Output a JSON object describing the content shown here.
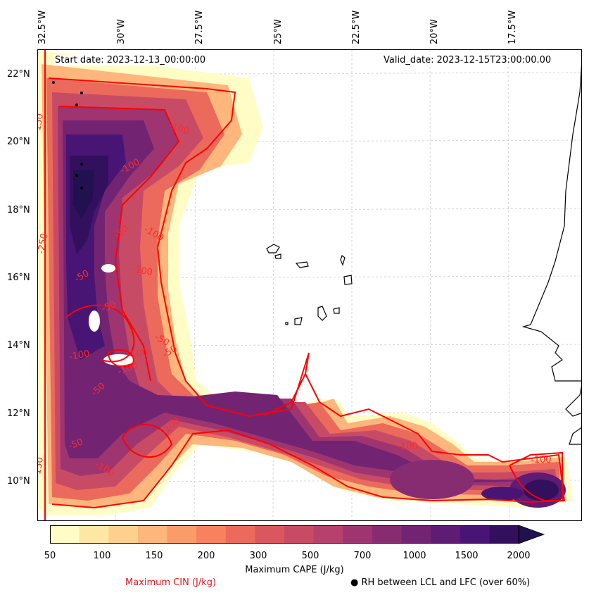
{
  "longitude_labels": [
    "32.5°W",
    "30°W",
    "27.5°W",
    "25°W",
    "22.5°W",
    "20°W",
    "17.5°W"
  ],
  "latitude_labels": [
    "22°N",
    "20°N",
    "18°N",
    "16°N",
    "14°N",
    "12°N",
    "10°N"
  ],
  "start_date": "Start date: 2023-12-13_00:00:00",
  "valid_date": "Valid_date: 2023-12-15T23:00:00.00",
  "colorbar": {
    "title": "Maximum CAPE (J/kg)",
    "ticks": [
      "50",
      "100",
      "150",
      "200",
      "300",
      "500",
      "700",
      "1000",
      "1500",
      "2000"
    ],
    "colors": [
      "#fffcc5",
      "#fee6a5",
      "#fed08f",
      "#fdb67c",
      "#fa9b6a",
      "#f8825f",
      "#eb6a5c",
      "#da575f",
      "#c84b66",
      "#b5416c",
      "#9e3570",
      "#882c72",
      "#722473",
      "#5e1c74",
      "#491574",
      "#32105d",
      "#221150"
    ]
  },
  "contour_labels": [
    "-100",
    "-100",
    "-100",
    "-100",
    "-50",
    "-50",
    "-50",
    "-50",
    "-50",
    "-100",
    "-100",
    "-100",
    "-50",
    "-50",
    "-100",
    "-100",
    "-150",
    "-250",
    "-150",
    "-100",
    "-100"
  ],
  "legend": {
    "cin_label": "Maximum CIN (J/kg)",
    "rh_label": "RH between LCL and LFC (over 60%)",
    "rh_marker": "●"
  },
  "colors": {
    "cin_contour": "#ff0000",
    "coastline": "#000000",
    "grid": "#cccccc"
  }
}
